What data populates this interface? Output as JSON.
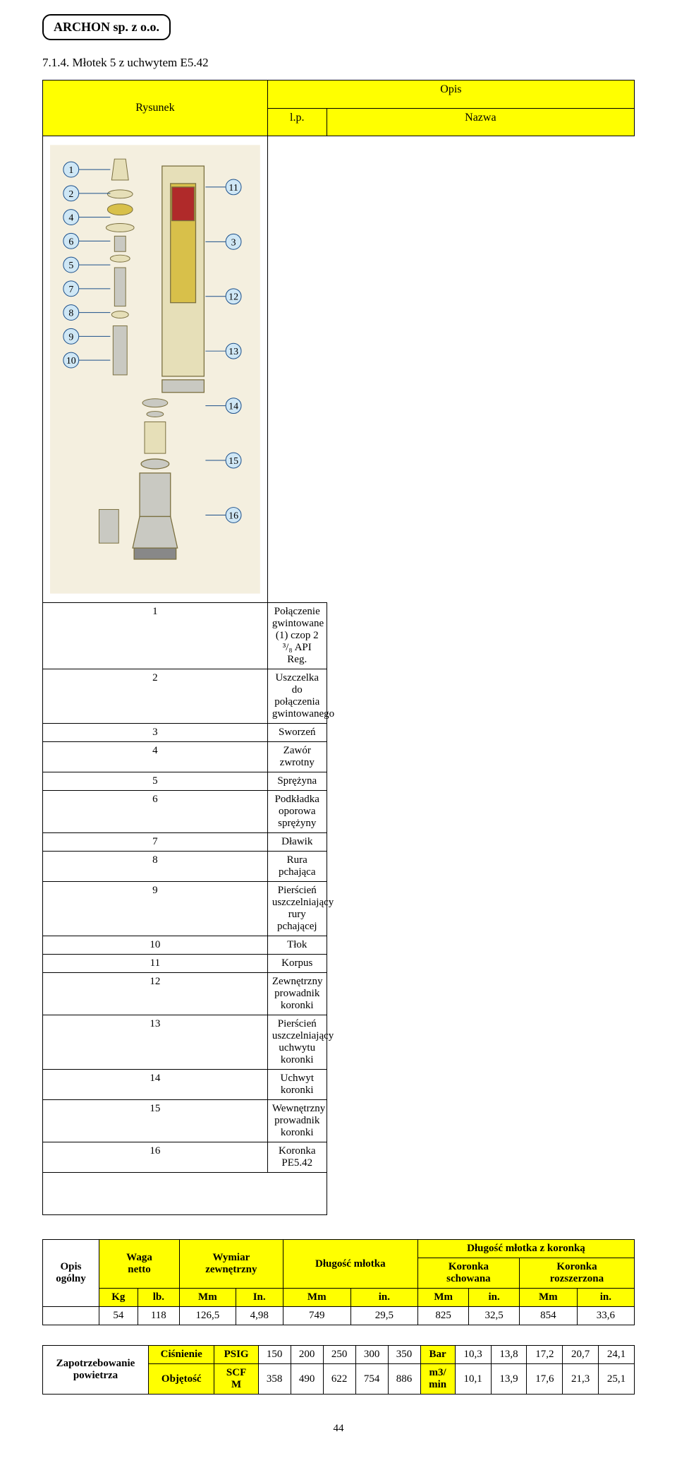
{
  "header_company": "ARCHON sp. z o.o.",
  "section_number_title": "7.1.4. Młotek 5 z uchwytem E5.42",
  "parts_table": {
    "col_rysunek": "Rysunek",
    "col_opis": "Opis",
    "col_lp": "l.p.",
    "col_nazwa": "Nazwa",
    "rows": [
      {
        "lp": "1",
        "nazwa": "Połączenie gwintowane (1) czop 2 ³/₈ API Reg."
      },
      {
        "lp": "2",
        "nazwa": "Uszczelka do połączenia gwintowanego"
      },
      {
        "lp": "3",
        "nazwa": "Sworzeń"
      },
      {
        "lp": "4",
        "nazwa": "Zawór zwrotny"
      },
      {
        "lp": "5",
        "nazwa": "Sprężyna"
      },
      {
        "lp": "6",
        "nazwa": "Podkładka oporowa sprężyny"
      },
      {
        "lp": "7",
        "nazwa": "Dławik"
      },
      {
        "lp": "8",
        "nazwa": "Rura pchająca"
      },
      {
        "lp": "9",
        "nazwa": "Pierścień uszczelniający rury pchającej"
      },
      {
        "lp": "10",
        "nazwa": "Tłok"
      },
      {
        "lp": "11",
        "nazwa": "Korpus"
      },
      {
        "lp": "12",
        "nazwa": "Zewnętrzny prowadnik koronki"
      },
      {
        "lp": "13",
        "nazwa": "Pierścień uszczelniający uchwytu koronki"
      },
      {
        "lp": "14",
        "nazwa": "Uchwyt koronki"
      },
      {
        "lp": "15",
        "nazwa": "Wewnętrzny prowadnik koronki"
      },
      {
        "lp": "16",
        "nazwa": "Koronka PE5.42"
      }
    ]
  },
  "diagram": {
    "bg_color": "#f4efdf",
    "callout_fill": "#cfe7f5",
    "callout_stroke": "#1b4f8a",
    "body_fill": "#e6dfb8",
    "body_stroke": "#7a6f3f",
    "accent_red": "#b02a2a",
    "accent_yellow": "#d8c04a",
    "steel_fill": "#c9c9c2",
    "labels_left": [
      "1",
      "2",
      "4",
      "6",
      "5",
      "7",
      "8",
      "9",
      "10"
    ],
    "labels_right": [
      "11",
      "3",
      "12",
      "13",
      "14",
      "15",
      "16"
    ]
  },
  "summary": {
    "opis_ogolny": "Opis\nogólny",
    "waga_netto": "Waga\nnetto",
    "wymiar_zewnetrzny": "Wymiar\nzewnętrzny",
    "dlugosc_mlotka": "Długość młotka",
    "dlugosc_z_koronka": "Długość młotka z koronką",
    "koronka_schowana": "Koronka\nschowana",
    "koronka_rozszerzona": "Koronka\nrozszerzona",
    "units": {
      "kg": "Kg",
      "lb": "lb.",
      "mm": "Mm",
      "in": "In.",
      "in2": "in."
    },
    "values": {
      "kg": "54",
      "lb": "118",
      "mm_ext": "126,5",
      "in_ext": "4,98",
      "mm_len": "749",
      "in_len": "29,5",
      "mm_sch": "825",
      "in_sch": "32,5",
      "mm_roz": "854",
      "in_roz": "33,6"
    }
  },
  "air": {
    "title": "Zapotrzebowanie\npowietrza",
    "cisnienie": "Ciśnienie",
    "objetosc": "Objętość",
    "psig": "PSIG",
    "scfm": "SCF\nM",
    "bar": "Bar",
    "m3min": "m3/\nmin",
    "psig_vals": [
      "150",
      "200",
      "250",
      "300",
      "350"
    ],
    "bar_vals": [
      "10,3",
      "13,8",
      "17,2",
      "20,7",
      "24,1"
    ],
    "scfm_vals": [
      "358",
      "490",
      "622",
      "754",
      "886"
    ],
    "m3_vals": [
      "10,1",
      "13,9",
      "17,6",
      "21,3",
      "25,1"
    ]
  },
  "page_number": "44"
}
